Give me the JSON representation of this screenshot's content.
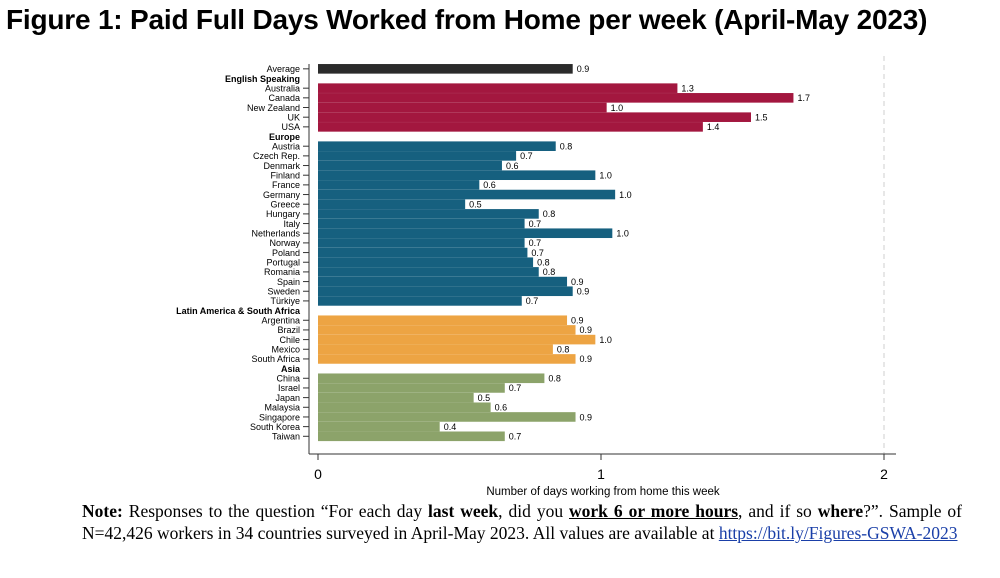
{
  "title": "Figure 1: Paid Full Days Worked from Home per week (April-May 2023)",
  "colors": {
    "average": "#2b2b2b",
    "english_speaking": "#a3173f",
    "europe": "#16607f",
    "latin_america": "#eda443",
    "asia": "#8ca36a"
  },
  "chart_data": {
    "type": "bar",
    "orientation": "horizontal",
    "xlabel": "Number of days working from home this week",
    "xlim": [
      0,
      2
    ],
    "xticks": [
      0,
      1,
      2
    ],
    "grid": false,
    "groups": [
      {
        "name": "",
        "color_key": "average",
        "items": [
          {
            "label": "Average",
            "value": 0.9,
            "data_label": "0.9"
          }
        ]
      },
      {
        "name": "English Speaking",
        "color_key": "english_speaking",
        "items": [
          {
            "label": "Australia",
            "value": 1.27,
            "data_label": "1.3"
          },
          {
            "label": "Canada",
            "value": 1.68,
            "data_label": "1.7"
          },
          {
            "label": "New Zealand",
            "value": 1.02,
            "data_label": "1.0"
          },
          {
            "label": "UK",
            "value": 1.53,
            "data_label": "1.5"
          },
          {
            "label": "USA",
            "value": 1.36,
            "data_label": "1.4"
          }
        ]
      },
      {
        "name": "Europe",
        "color_key": "europe",
        "items": [
          {
            "label": "Austria",
            "value": 0.84,
            "data_label": "0.8"
          },
          {
            "label": "Czech Rep.",
            "value": 0.7,
            "data_label": "0.7"
          },
          {
            "label": "Denmark",
            "value": 0.65,
            "data_label": "0.6"
          },
          {
            "label": "Finland",
            "value": 0.98,
            "data_label": "1.0"
          },
          {
            "label": "France",
            "value": 0.57,
            "data_label": "0.6"
          },
          {
            "label": "Germany",
            "value": 1.05,
            "data_label": "1.0"
          },
          {
            "label": "Greece",
            "value": 0.52,
            "data_label": "0.5"
          },
          {
            "label": "Hungary",
            "value": 0.78,
            "data_label": "0.8"
          },
          {
            "label": "Italy",
            "value": 0.73,
            "data_label": "0.7"
          },
          {
            "label": "Netherlands",
            "value": 1.04,
            "data_label": "1.0"
          },
          {
            "label": "Norway",
            "value": 0.73,
            "data_label": "0.7"
          },
          {
            "label": "Poland",
            "value": 0.74,
            "data_label": "0.7"
          },
          {
            "label": "Portugal",
            "value": 0.76,
            "data_label": "0.8"
          },
          {
            "label": "Romania",
            "value": 0.78,
            "data_label": "0.8"
          },
          {
            "label": "Spain",
            "value": 0.88,
            "data_label": "0.9"
          },
          {
            "label": "Sweden",
            "value": 0.9,
            "data_label": "0.9"
          },
          {
            "label": "Türkiye",
            "value": 0.72,
            "data_label": "0.7"
          }
        ]
      },
      {
        "name": "Latin America & South Africa",
        "color_key": "latin_america",
        "items": [
          {
            "label": "Argentina",
            "value": 0.88,
            "data_label": "0.9"
          },
          {
            "label": "Brazil",
            "value": 0.91,
            "data_label": "0.9"
          },
          {
            "label": "Chile",
            "value": 0.98,
            "data_label": "1.0"
          },
          {
            "label": "Mexico",
            "value": 0.83,
            "data_label": "0.8"
          },
          {
            "label": "South Africa",
            "value": 0.91,
            "data_label": "0.9"
          }
        ]
      },
      {
        "name": "Asia",
        "color_key": "asia",
        "items": [
          {
            "label": "China",
            "value": 0.8,
            "data_label": "0.8"
          },
          {
            "label": "Israel",
            "value": 0.66,
            "data_label": "0.7"
          },
          {
            "label": "Japan",
            "value": 0.55,
            "data_label": "0.5"
          },
          {
            "label": "Malaysia",
            "value": 0.61,
            "data_label": "0.6"
          },
          {
            "label": "Singapore",
            "value": 0.91,
            "data_label": "0.9"
          },
          {
            "label": "South Korea",
            "value": 0.43,
            "data_label": "0.4"
          },
          {
            "label": "Taiwan",
            "value": 0.66,
            "data_label": "0.7"
          }
        ]
      }
    ]
  },
  "note": {
    "label": "Note:",
    "t1": " Responses to the question “For each day ",
    "b1": "last week",
    "t2": ", did you ",
    "b2": "work 6 or more hours",
    "t3": ", and if so ",
    "b3": "where",
    "t4": "?”. Sample of N=42,426 workers in 34 countries surveyed in April-May 2023. All values are available at ",
    "link": "https://bit.ly/Figures-GSWA-2023"
  }
}
